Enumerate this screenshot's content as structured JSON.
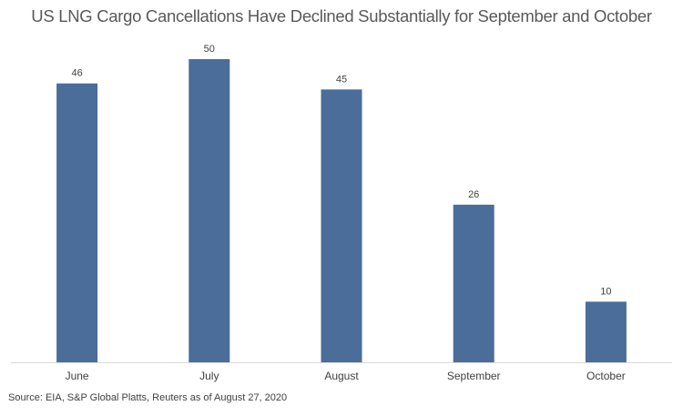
{
  "chart_data": {
    "type": "bar",
    "title": "US LNG Cargo Cancellations Have Declined Substantially for September and October",
    "categories": [
      "June",
      "July",
      "August",
      "September",
      "October"
    ],
    "values": [
      46,
      50,
      45,
      26,
      10
    ],
    "data_labels": [
      "46",
      "50",
      "45",
      "26",
      "10"
    ],
    "xlabel": "",
    "ylabel": "",
    "ylim": [
      0,
      50
    ],
    "grid": false,
    "legend": "none",
    "bar_color": "#4a6d9a",
    "axis_color": "#d9d9d9",
    "source": "Source: EIA, S&P Global Platts, Reuters as of August 27, 2020"
  }
}
